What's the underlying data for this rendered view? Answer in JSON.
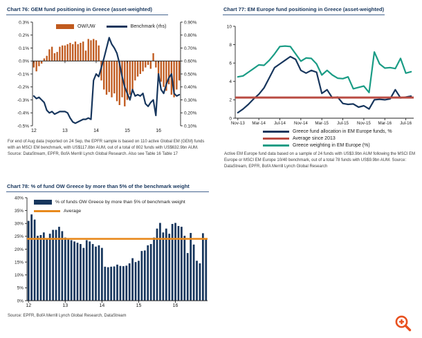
{
  "page": {
    "background": "#ffffff"
  },
  "zoom_button": {
    "name": "zoom-in",
    "color": "#e8501e"
  },
  "chart_data": [
    {
      "id": "chart76",
      "type": "bar+line",
      "title": "Chart 76: GEM fund positioning in Greece (asset-weighted)",
      "footnote": "For end of Aug data (reported on 24 Sep, the EPFR sample is based on 110 active Global EM (GEM) funds with an MSCI EM benchmark, with US$117.8bn AUM, out of a total of 802 funds with US$632.9bn AUM. Source: DataStream, EPFR, BofA Merrill Lynch Global Research. Also see Table 16 Table 17",
      "x_axis": {
        "ticks": [
          "12",
          "13",
          "14",
          "15",
          "16"
        ],
        "tick_every": 12,
        "baseline": 0
      },
      "left_axis": {
        "min": -0.5,
        "max": 0.3,
        "ticks": [
          "0.3%",
          "0.2%",
          "0.1%",
          "0.0%",
          "-0.1%",
          "-0.2%",
          "-0.3%",
          "-0.4%",
          "-0.5%"
        ]
      },
      "right_axis": {
        "min": 0.1,
        "max": 0.9,
        "ticks": [
          "0.90%",
          "0.80%",
          "0.70%",
          "0.60%",
          "0.50%",
          "0.40%",
          "0.30%",
          "0.20%",
          "0.10%"
        ]
      },
      "series": [
        {
          "name": "OW/UW",
          "type": "bar",
          "axis": "left",
          "color": "#c05a1e",
          "values": [
            -0.05,
            -0.08,
            -0.04,
            -0.02,
            0.02,
            0.04,
            0.09,
            0.11,
            0.06,
            0.07,
            0.11,
            0.12,
            0.12,
            0.13,
            0.14,
            0.13,
            0.15,
            0.13,
            0.14,
            0.15,
            0.08,
            0.17,
            0.16,
            0.17,
            0.16,
            0.12,
            -0.15,
            -0.22,
            -0.26,
            -0.24,
            -0.28,
            -0.25,
            -0.31,
            -0.34,
            -0.28,
            -0.35,
            -0.3,
            -0.26,
            -0.22,
            -0.15,
            -0.12,
            -0.1,
            -0.08,
            -0.05,
            -0.03,
            -0.06,
            0.06,
            -0.05,
            -0.12,
            -0.16,
            -0.2,
            -0.23,
            -0.18,
            -0.26,
            -0.28,
            -0.22,
            -0.15
          ]
        },
        {
          "name": "Benchmark (rhs)",
          "type": "line",
          "axis": "right",
          "color": "#17365d",
          "stroke_width": 2.2,
          "values": [
            0.33,
            0.31,
            0.32,
            0.3,
            0.28,
            0.22,
            0.2,
            0.21,
            0.19,
            0.2,
            0.21,
            0.21,
            0.21,
            0.2,
            0.16,
            0.13,
            0.12,
            0.13,
            0.14,
            0.15,
            0.15,
            0.16,
            0.15,
            0.45,
            0.5,
            0.48,
            0.55,
            0.62,
            0.7,
            0.78,
            0.73,
            0.7,
            0.66,
            0.58,
            0.48,
            0.4,
            0.35,
            0.3,
            0.38,
            0.33,
            0.34,
            0.33,
            0.35,
            0.27,
            0.25,
            0.28,
            0.3,
            0.18,
            0.5,
            0.38,
            0.35,
            0.42,
            0.47,
            0.5,
            0.35,
            0.33,
            0.34
          ]
        }
      ]
    },
    {
      "id": "chart77",
      "type": "line",
      "title": "Chart 77: EM Europe fund positioning in Greece (asset-weighted)",
      "footnote": "Active EM Europe fund data based on a sample of 24 funds with US$3.9bn AUM following the MSCI EM Europe or MSCI EM Europe 10/40 benchmark, out of a total 78 funds with US$9.9bn AUM. Source: DataStream, EPFR, BofA Merrill Lynch Global Research",
      "x_axis": {
        "ticks": [
          "Nov-13",
          "Mar-14",
          "Jul-14",
          "Nov-14",
          "Mar-15",
          "Jul-15",
          "Nov-15",
          "Mar-16",
          "Jul-16"
        ],
        "tick_every": 4,
        "baseline": 0
      },
      "left_axis": {
        "min": 0,
        "max": 10,
        "ticks": [
          "10",
          "8",
          "6",
          "4",
          "2",
          "0"
        ]
      },
      "series": [
        {
          "name": "Greece fund allocation in EM Europe funds, %",
          "type": "line",
          "axis": "left",
          "color": "#17365d",
          "stroke_width": 2.2,
          "values": [
            0.6,
            1.0,
            1.5,
            2.1,
            2.6,
            3.3,
            4.4,
            5.5,
            5.9,
            6.3,
            6.7,
            6.4,
            5.2,
            4.9,
            5.2,
            5.0,
            2.7,
            3.1,
            2.2,
            2.3,
            1.6,
            1.5,
            1.55,
            1.2,
            1.35,
            1.0,
            2.0,
            2.05,
            2.0,
            2.1,
            3.1,
            2.2,
            2.3,
            2.4
          ]
        },
        {
          "name": "Average since 2013",
          "type": "hline",
          "axis": "left",
          "color": "#b94b42",
          "stroke_width": 3,
          "value": 2.25
        },
        {
          "name": "Greece weighting in EM Europe (%)",
          "type": "line",
          "axis": "left",
          "color": "#1a9c85",
          "stroke_width": 2.2,
          "values": [
            4.5,
            4.6,
            5.0,
            5.4,
            5.8,
            5.75,
            6.3,
            7.0,
            7.8,
            7.85,
            7.8,
            7.0,
            6.2,
            6.55,
            6.5,
            5.9,
            4.7,
            5.2,
            4.7,
            4.35,
            4.3,
            4.5,
            3.2,
            3.35,
            3.5,
            2.8,
            7.2,
            5.9,
            5.45,
            5.5,
            5.4,
            6.5,
            4.9,
            5.05
          ]
        }
      ]
    },
    {
      "id": "chart78",
      "type": "bar",
      "title": "Chart 78: % of fund OW Greece by more than 5% of the benchmark weight",
      "footnote": "Source: EPFR, BofA Merrill Lynch Global Research, DataStream",
      "x_axis": {
        "ticks": [
          "12",
          "13",
          "14",
          "15",
          "16"
        ],
        "tick_every": 12,
        "baseline": 0
      },
      "left_axis": {
        "min": 0,
        "max": 40,
        "ticks": [
          "40%",
          "35%",
          "30%",
          "25%",
          "20%",
          "15%",
          "10%",
          "5%",
          "0%"
        ]
      },
      "series": [
        {
          "name": "% of funds OW Greece by more than 5% of benchmark weight",
          "type": "bar",
          "axis": "left",
          "color": "#17365d",
          "values": [
            31,
            33.5,
            31.5,
            25.2,
            25.5,
            26.5,
            24,
            26,
            27.5,
            27.5,
            28.7,
            27,
            24.5,
            24,
            23.5,
            23,
            22.5,
            22,
            20.5,
            23.5,
            23,
            22,
            21,
            21.5,
            20.5,
            13.2,
            13,
            13.2,
            13.3,
            14,
            13.5,
            13.4,
            13.6,
            14.5,
            16.5,
            15,
            15.5,
            19.3,
            19.5,
            21.5,
            22,
            24.5,
            28,
            30.2,
            26.5,
            28,
            26,
            29.8,
            30.2,
            29,
            28.7,
            25.2,
            18.5,
            26.3,
            21.8,
            15.5,
            14.5,
            26.2,
            23.8
          ]
        },
        {
          "name": "Average",
          "type": "hline",
          "axis": "left",
          "color": "#e8891c",
          "stroke_width": 2.6,
          "value": 24
        }
      ]
    }
  ]
}
